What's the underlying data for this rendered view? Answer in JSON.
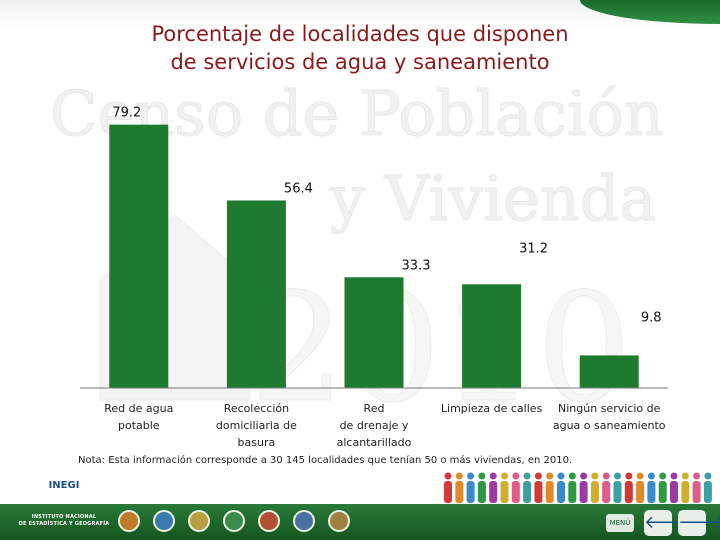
{
  "slide": {
    "title_line1": "Porcentaje de localidades que disponen",
    "title_line2": "de servicios de agua y saneamiento",
    "note": "Nota: Esta información corresponde a 30 145 localidades que tenían 50 o más viviendas, en 2010.",
    "watermark_line1": "Censo de Población",
    "watermark_line2": "y Vivienda",
    "watermark_line3": "2010"
  },
  "chart_data": {
    "type": "bar",
    "categories": [
      [
        "Red de agua",
        "potable"
      ],
      [
        "Recolección",
        "domiciliaria de",
        "basura"
      ],
      [
        "Red",
        "de drenaje  y",
        "alcantarillado"
      ],
      [
        "Limpieza de calles"
      ],
      [
        "Ningún servicio de",
        "agua o saneamiento"
      ]
    ],
    "values": [
      79.2,
      56.4,
      33.3,
      31.2,
      9.8
    ],
    "value_labels": [
      "79.2",
      "56.4",
      "33.3",
      "31.2",
      "9.8"
    ],
    "ylim": [
      0,
      80
    ],
    "grid": false,
    "legend": "none",
    "bar_color": "#1e7a2e"
  },
  "footer": {
    "logo_mark": "INEGI",
    "logo_org_line1": "INSTITUTO NACIONAL",
    "logo_org_line2": "DE ESTADÍSTICA Y GEOGRAFÍA",
    "menu_label": "MENÚ",
    "prev_arrow": "🡐",
    "next_arrow": "🡒",
    "nav_icons": [
      "education-icon",
      "health-icon",
      "family-icon",
      "population-icon",
      "housing-icon",
      "map-icon",
      "document-icon"
    ],
    "nav_colors": [
      "#c07a2a",
      "#3a7ab0",
      "#b8a040",
      "#3a8a4a",
      "#b05030",
      "#4a70a0",
      "#a08040"
    ]
  }
}
